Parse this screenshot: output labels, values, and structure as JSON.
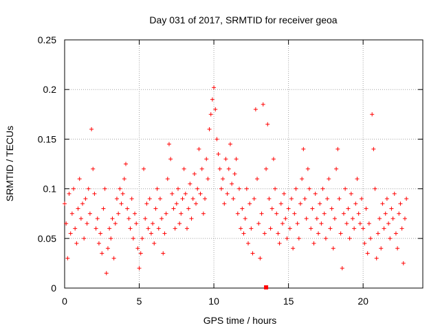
{
  "chart_data": {
    "type": "scatter",
    "title": "Day 031 of 2017, SRMTID for receiver geoa",
    "xlabel": "GPS time / hours",
    "ylabel": "SRMTID / TECUs",
    "xlim": [
      0,
      24
    ],
    "ylim": [
      0,
      0.25
    ],
    "xticks": [
      0,
      5,
      10,
      15,
      20
    ],
    "xtick_labels": [
      "0",
      "5",
      "10",
      "15",
      "20"
    ],
    "yticks": [
      0,
      0.05,
      0.1,
      0.15,
      0.2,
      0.25
    ],
    "ytick_labels": [
      "0",
      "0.05",
      "0.1",
      "0.15",
      "0.2",
      "0.25"
    ],
    "grid": true,
    "marker": "+",
    "color": "#ff0000",
    "series": [
      {
        "name": "SRMTID",
        "points": [
          [
            0.0,
            0.085
          ],
          [
            0.1,
            0.065
          ],
          [
            0.2,
            0.03
          ],
          [
            0.3,
            0.095
          ],
          [
            0.4,
            0.055
          ],
          [
            0.5,
            0.075
          ],
          [
            0.6,
            0.1
          ],
          [
            0.7,
            0.06
          ],
          [
            0.8,
            0.045
          ],
          [
            0.9,
            0.08
          ],
          [
            1.0,
            0.11
          ],
          [
            1.1,
            0.07
          ],
          [
            1.2,
            0.085
          ],
          [
            1.3,
            0.05
          ],
          [
            1.4,
            0.09
          ],
          [
            1.5,
            0.065
          ],
          [
            1.6,
            0.1
          ],
          [
            1.7,
            0.075
          ],
          [
            1.8,
            0.16
          ],
          [
            1.9,
            0.12
          ],
          [
            2.0,
            0.095
          ],
          [
            2.1,
            0.06
          ],
          [
            2.2,
            0.07
          ],
          [
            2.3,
            0.045
          ],
          [
            2.4,
            0.055
          ],
          [
            2.5,
            0.035
          ],
          [
            2.6,
            0.08
          ],
          [
            2.7,
            0.1
          ],
          [
            2.8,
            0.015
          ],
          [
            2.9,
            0.04
          ],
          [
            3.0,
            0.06
          ],
          [
            3.1,
            0.05
          ],
          [
            3.2,
            0.07
          ],
          [
            3.3,
            0.03
          ],
          [
            3.4,
            0.065
          ],
          [
            3.5,
            0.09
          ],
          [
            3.6,
            0.075
          ],
          [
            3.7,
            0.1
          ],
          [
            3.8,
            0.085
          ],
          [
            3.9,
            0.095
          ],
          [
            4.0,
            0.11
          ],
          [
            4.1,
            0.125
          ],
          [
            4.2,
            0.08
          ],
          [
            4.3,
            0.07
          ],
          [
            4.4,
            0.06
          ],
          [
            4.5,
            0.09
          ],
          [
            4.6,
            0.05
          ],
          [
            4.7,
            0.075
          ],
          [
            4.8,
            0.065
          ],
          [
            4.9,
            0.04
          ],
          [
            5.0,
            0.02
          ],
          [
            5.1,
            0.035
          ],
          [
            5.2,
            0.05
          ],
          [
            5.3,
            0.12
          ],
          [
            5.4,
            0.07
          ],
          [
            5.5,
            0.085
          ],
          [
            5.6,
            0.06
          ],
          [
            5.7,
            0.09
          ],
          [
            5.8,
            0.055
          ],
          [
            5.9,
            0.065
          ],
          [
            6.0,
            0.045
          ],
          [
            6.1,
            0.08
          ],
          [
            6.2,
            0.1
          ],
          [
            6.3,
            0.06
          ],
          [
            6.4,
            0.09
          ],
          [
            6.5,
            0.07
          ],
          [
            6.6,
            0.035
          ],
          [
            6.7,
            0.055
          ],
          [
            6.8,
            0.075
          ],
          [
            6.9,
            0.11
          ],
          [
            7.0,
            0.145
          ],
          [
            7.1,
            0.13
          ],
          [
            7.2,
            0.095
          ],
          [
            7.3,
            0.08
          ],
          [
            7.4,
            0.06
          ],
          [
            7.5,
            0.085
          ],
          [
            7.6,
            0.1
          ],
          [
            7.7,
            0.065
          ],
          [
            7.8,
            0.075
          ],
          [
            7.9,
            0.09
          ],
          [
            8.0,
            0.12
          ],
          [
            8.1,
            0.095
          ],
          [
            8.2,
            0.06
          ],
          [
            8.3,
            0.08
          ],
          [
            8.4,
            0.105
          ],
          [
            8.5,
            0.07
          ],
          [
            8.6,
            0.09
          ],
          [
            8.7,
            0.115
          ],
          [
            8.8,
            0.085
          ],
          [
            8.9,
            0.1
          ],
          [
            9.0,
            0.14
          ],
          [
            9.1,
            0.095
          ],
          [
            9.2,
            0.12
          ],
          [
            9.3,
            0.075
          ],
          [
            9.4,
            0.09
          ],
          [
            9.5,
            0.13
          ],
          [
            9.6,
            0.11
          ],
          [
            9.7,
            0.16
          ],
          [
            9.8,
            0.175
          ],
          [
            9.9,
            0.19
          ],
          [
            10.0,
            0.202
          ],
          [
            10.1,
            0.18
          ],
          [
            10.2,
            0.15
          ],
          [
            10.3,
            0.135
          ],
          [
            10.4,
            0.12
          ],
          [
            10.5,
            0.1
          ],
          [
            10.6,
            0.11
          ],
          [
            10.7,
            0.085
          ],
          [
            10.8,
            0.13
          ],
          [
            10.9,
            0.095
          ],
          [
            11.0,
            0.12
          ],
          [
            11.1,
            0.145
          ],
          [
            11.2,
            0.105
          ],
          [
            11.3,
            0.09
          ],
          [
            11.4,
            0.115
          ],
          [
            11.5,
            0.13
          ],
          [
            11.6,
            0.075
          ],
          [
            11.7,
            0.1
          ],
          [
            11.8,
            0.06
          ],
          [
            11.9,
            0.08
          ],
          [
            12.0,
            0.055
          ],
          [
            12.1,
            0.07
          ],
          [
            12.2,
            0.1
          ],
          [
            12.3,
            0.045
          ],
          [
            12.4,
            0.085
          ],
          [
            12.5,
            0.06
          ],
          [
            12.6,
            0.035
          ],
          [
            12.7,
            0.09
          ],
          [
            12.8,
            0.18
          ],
          [
            12.9,
            0.11
          ],
          [
            13.0,
            0.065
          ],
          [
            13.1,
            0.03
          ],
          [
            13.2,
            0.075
          ],
          [
            13.3,
            0.185
          ],
          [
            13.4,
            0.055
          ],
          [
            13.5,
            0.12
          ],
          [
            13.6,
            0.165
          ],
          [
            13.7,
            0.09
          ],
          [
            13.8,
            0.06
          ],
          [
            13.9,
            0.08
          ],
          [
            14.0,
            0.13
          ],
          [
            14.1,
            0.1
          ],
          [
            14.2,
            0.075
          ],
          [
            14.3,
            0.055
          ],
          [
            14.4,
            0.045
          ],
          [
            14.5,
            0.085
          ],
          [
            14.6,
            0.065
          ],
          [
            14.7,
            0.095
          ],
          [
            14.8,
            0.07
          ],
          [
            14.9,
            0.05
          ],
          [
            15.0,
            0.08
          ],
          [
            15.1,
            0.06
          ],
          [
            15.2,
            0.09
          ],
          [
            15.3,
            0.04
          ],
          [
            15.4,
            0.075
          ],
          [
            15.5,
            0.1
          ],
          [
            15.6,
            0.065
          ],
          [
            15.7,
            0.05
          ],
          [
            15.8,
            0.085
          ],
          [
            15.9,
            0.11
          ],
          [
            16.0,
            0.14
          ],
          [
            16.1,
            0.09
          ],
          [
            16.2,
            0.07
          ],
          [
            16.3,
            0.12
          ],
          [
            16.4,
            0.1
          ],
          [
            16.5,
            0.06
          ],
          [
            16.6,
            0.08
          ],
          [
            16.7,
            0.045
          ],
          [
            16.8,
            0.095
          ],
          [
            16.9,
            0.07
          ],
          [
            17.0,
            0.055
          ],
          [
            17.1,
            0.085
          ],
          [
            17.2,
            0.065
          ],
          [
            17.3,
            0.1
          ],
          [
            17.4,
            0.075
          ],
          [
            17.5,
            0.05
          ],
          [
            17.6,
            0.09
          ],
          [
            17.7,
            0.11
          ],
          [
            17.8,
            0.06
          ],
          [
            17.9,
            0.08
          ],
          [
            18.0,
            0.04
          ],
          [
            18.1,
            0.07
          ],
          [
            18.2,
            0.12
          ],
          [
            18.3,
            0.14
          ],
          [
            18.4,
            0.09
          ],
          [
            18.5,
            0.055
          ],
          [
            18.6,
            0.02
          ],
          [
            18.7,
            0.075
          ],
          [
            18.8,
            0.1
          ],
          [
            18.9,
            0.065
          ],
          [
            19.0,
            0.08
          ],
          [
            19.1,
            0.05
          ],
          [
            19.2,
            0.095
          ],
          [
            19.3,
            0.07
          ],
          [
            19.4,
            0.06
          ],
          [
            19.5,
            0.085
          ],
          [
            19.6,
            0.11
          ],
          [
            19.7,
            0.075
          ],
          [
            19.8,
            0.065
          ],
          [
            19.9,
            0.09
          ],
          [
            20.0,
            0.06
          ],
          [
            20.1,
            0.045
          ],
          [
            20.2,
            0.08
          ],
          [
            20.3,
            0.035
          ],
          [
            20.4,
            0.065
          ],
          [
            20.5,
            0.05
          ],
          [
            20.6,
            0.175
          ],
          [
            20.7,
            0.14
          ],
          [
            20.8,
            0.1
          ],
          [
            20.9,
            0.03
          ],
          [
            21.0,
            0.055
          ],
          [
            21.1,
            0.07
          ],
          [
            21.2,
            0.04
          ],
          [
            21.3,
            0.085
          ],
          [
            21.4,
            0.06
          ],
          [
            21.5,
            0.075
          ],
          [
            21.6,
            0.09
          ],
          [
            21.7,
            0.065
          ],
          [
            21.8,
            0.05
          ],
          [
            21.9,
            0.08
          ],
          [
            22.0,
            0.07
          ],
          [
            22.1,
            0.095
          ],
          [
            22.2,
            0.055
          ],
          [
            22.3,
            0.04
          ],
          [
            22.4,
            0.075
          ],
          [
            22.5,
            0.085
          ],
          [
            22.6,
            0.06
          ],
          [
            22.7,
            0.025
          ],
          [
            22.8,
            0.07
          ],
          [
            22.9,
            0.09
          ]
        ]
      }
    ],
    "special_marker": {
      "x": 13.5,
      "y": 0,
      "shape": "square"
    }
  }
}
